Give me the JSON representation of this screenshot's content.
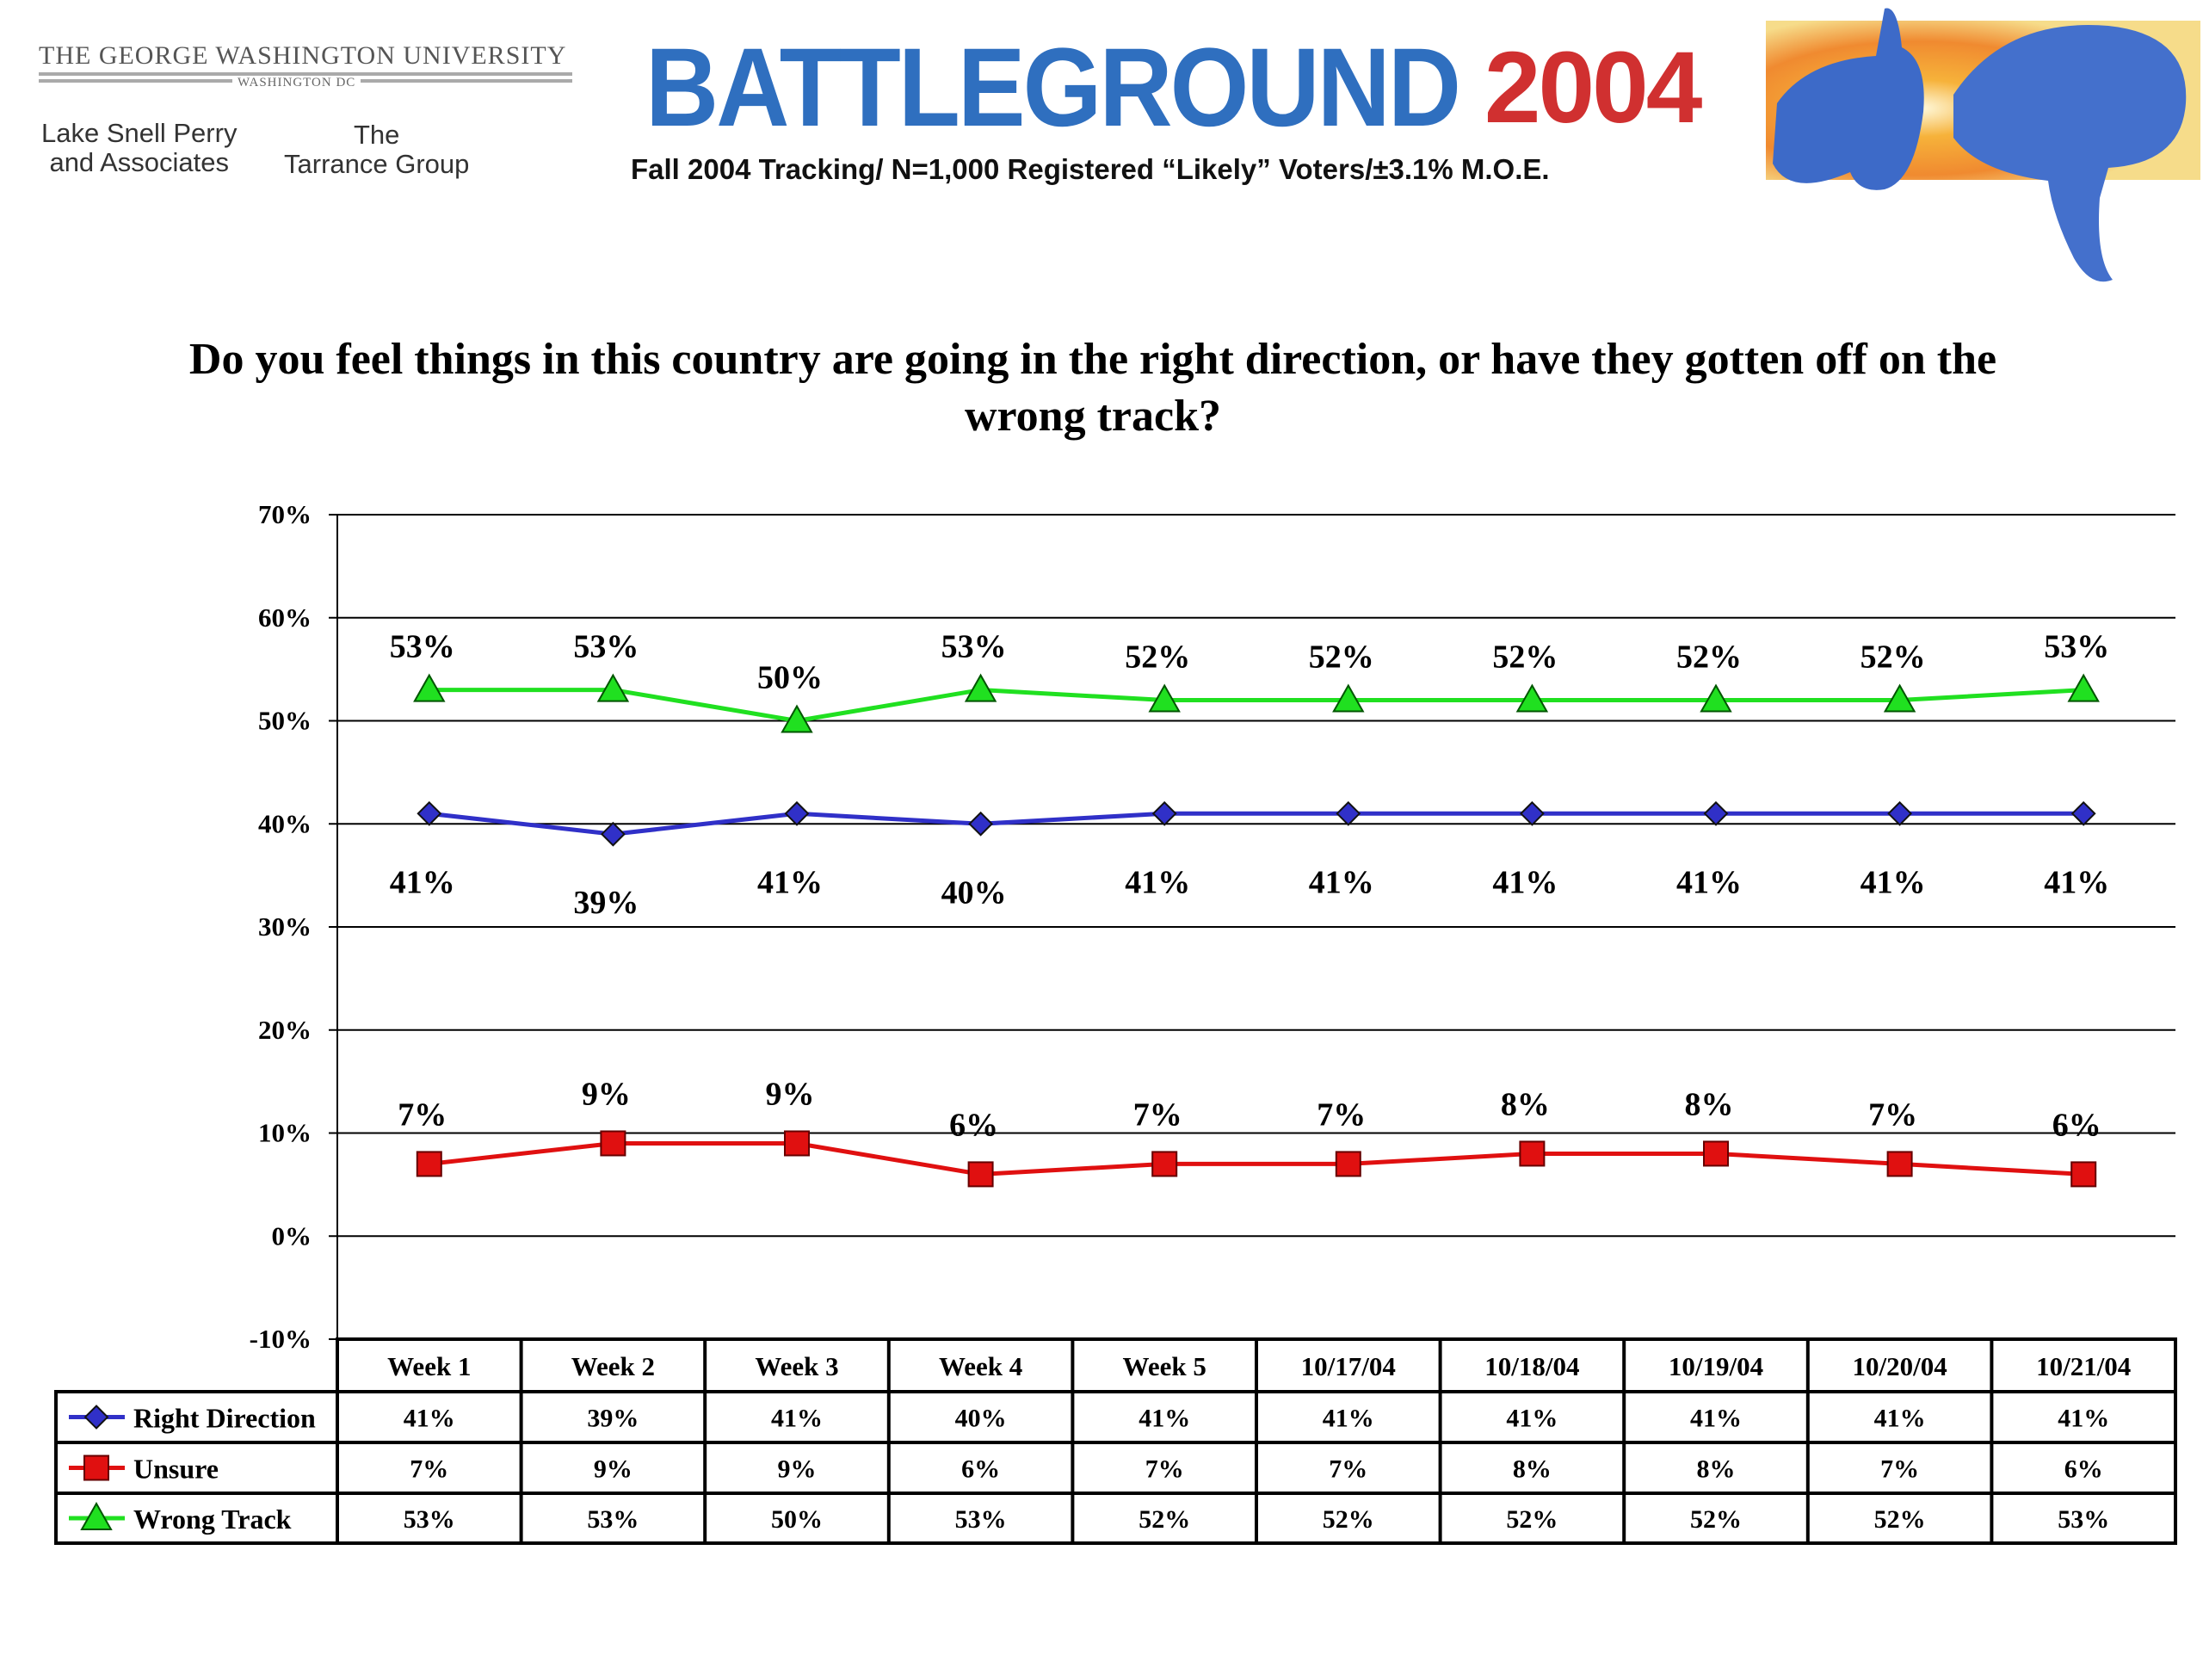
{
  "header": {
    "university": "THE GEORGE WASHINGTON UNIVERSITY",
    "university_sub": "WASHINGTON DC",
    "partner1_line1": "Lake Snell Perry",
    "partner1_line2": "and Associates",
    "partner2_line1": "The",
    "partner2_line2": "Tarrance Group",
    "logo_word": "BATTLEGROUND",
    "logo_year": "2004",
    "subtitle": "Fall 2004 Tracking/ N=1,000 Registered “Likely” Voters/±3.1% M.O.E.",
    "illustration": "donkey-and-elephant"
  },
  "chart_data": {
    "type": "line",
    "title": "Do you feel things in this country are going in the right direction, or have they gotten off on the wrong track?",
    "categories": [
      "Week 1",
      "Week 2",
      "Week 3",
      "Week 4",
      "Week 5",
      "10/17/04",
      "10/18/04",
      "10/19/04",
      "10/20/04",
      "10/21/04"
    ],
    "ylim": [
      -10,
      70
    ],
    "yticks": [
      "70%",
      "60%",
      "50%",
      "40%",
      "30%",
      "20%",
      "10%",
      "0%",
      "-10%"
    ],
    "ytick_values": [
      70,
      60,
      50,
      40,
      30,
      20,
      10,
      0,
      -10
    ],
    "grid": true,
    "legend": "data-table-bottom",
    "series": [
      {
        "name": "Right Direction",
        "color": "#3030c8",
        "marker": "diamond",
        "values": [
          41,
          39,
          41,
          40,
          41,
          41,
          41,
          41,
          41,
          41
        ],
        "labels": [
          "41%",
          "39%",
          "41%",
          "40%",
          "41%",
          "41%",
          "41%",
          "41%",
          "41%",
          "41%"
        ]
      },
      {
        "name": "Unsure",
        "color": "#e01010",
        "marker": "square",
        "values": [
          7,
          9,
          9,
          6,
          7,
          7,
          8,
          8,
          7,
          6
        ],
        "labels": [
          "7%",
          "9%",
          "9%",
          "6%",
          "7%",
          "7%",
          "8%",
          "8%",
          "7%",
          "6%"
        ]
      },
      {
        "name": "Wrong Track",
        "color": "#20e020",
        "marker": "triangle",
        "values": [
          53,
          53,
          50,
          53,
          52,
          52,
          52,
          52,
          52,
          53
        ],
        "labels": [
          "53%",
          "53%",
          "50%",
          "53%",
          "52%",
          "52%",
          "52%",
          "52%",
          "52%",
          "53%"
        ]
      }
    ]
  }
}
